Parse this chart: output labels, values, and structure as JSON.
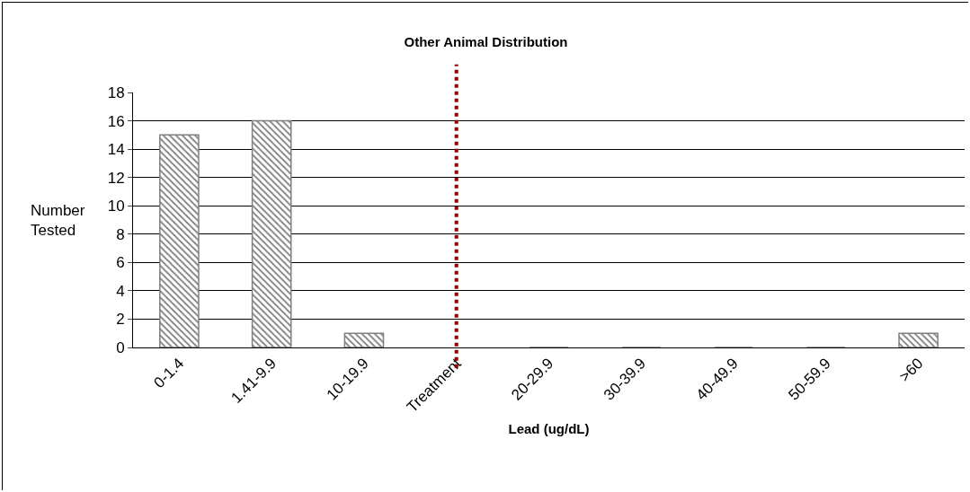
{
  "chart_data": {
    "type": "bar",
    "title": "Other Animal Distribution",
    "xlabel": "Lead (ug/dL)",
    "ylabel": "Number Tested",
    "categories": [
      "0-1.4",
      "1.41-9.9",
      "10-19.9",
      "Treatment",
      "20-29.9",
      "30-39.9",
      "40-49.9",
      "50-59.9",
      ">60"
    ],
    "values": [
      15,
      16,
      1,
      null,
      0,
      0,
      0,
      0,
      1
    ],
    "color": "#808080",
    "ylim": [
      0,
      18
    ],
    "yticks": [
      0,
      2,
      4,
      6,
      8,
      10,
      12,
      14,
      16,
      18
    ],
    "grid": "y",
    "ref_lines": [
      {
        "axis": "x",
        "value": "Treatment",
        "color": "#8b0000",
        "line_style": "dotted"
      }
    ]
  }
}
